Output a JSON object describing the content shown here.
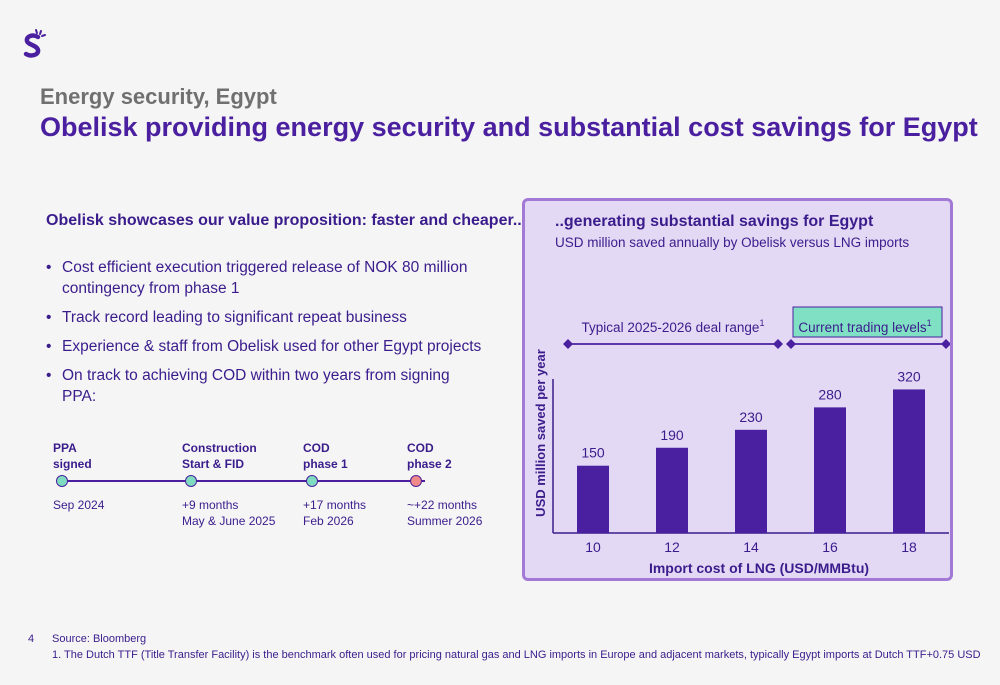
{
  "slide": {
    "kicker": "Energy security, Egypt",
    "title": "Obelisk providing energy security and substantial cost savings for Egypt"
  },
  "left": {
    "heading": "Obelisk showcases our value proposition: faster and cheaper..",
    "bullets": [
      "Cost efficient execution triggered release of NOK 80 million contingency from phase 1",
      "Track record leading to significant repeat business",
      "Experience & staff from Obelisk used for other Egypt projects",
      "On track to achieving COD within two years from signing PPA:"
    ]
  },
  "timeline": [
    {
      "label1": "PPA",
      "label2": "signed",
      "date1": "Sep 2024",
      "date2": "",
      "color": "#7fdcc0"
    },
    {
      "label1": "Construction",
      "label2": "Start & FID",
      "date1": "+9 months",
      "date2": "May & June 2025",
      "color": "#7fdcc0"
    },
    {
      "label1": "COD",
      "label2": "phase 1",
      "date1": "+17 months",
      "date2": "Feb 2026",
      "color": "#7fdcc0"
    },
    {
      "label1": "COD",
      "label2": "phase 2",
      "date1": "~+22 months",
      "date2": "Summer 2026",
      "color": "#f08a8a"
    }
  ],
  "panel": {
    "title": "..generating substantial savings for Egypt",
    "subtitle": "USD million saved annually by Obelisk versus LNG imports"
  },
  "chart_data": {
    "type": "bar",
    "categories": [
      "10",
      "12",
      "14",
      "16",
      "18"
    ],
    "values": [
      150,
      190,
      230,
      280,
      320
    ],
    "title": "",
    "xlabel": "Import cost of LNG (USD/MMBtu)",
    "ylabel": "USD million saved per year",
    "ylim": [
      0,
      370
    ],
    "bar_color": "#4b20a0",
    "annotations": [
      {
        "text": "Typical 2025-2026 deal range",
        "sup": "1",
        "from": "10",
        "to": "14",
        "highlight": false
      },
      {
        "text": "Current trading levels",
        "sup": "1",
        "from": "16",
        "to": "18",
        "highlight": true,
        "highlight_color": "#7fe0c4"
      }
    ]
  },
  "footer": {
    "page_number": "4",
    "source": "Source: Bloomberg",
    "footnote": "1.   The Dutch TTF (Title Transfer Facility) is the benchmark often used for pricing natural gas and LNG imports in Europe and adjacent markets, typically Egypt imports at Dutch TTF+0.75 USD"
  }
}
